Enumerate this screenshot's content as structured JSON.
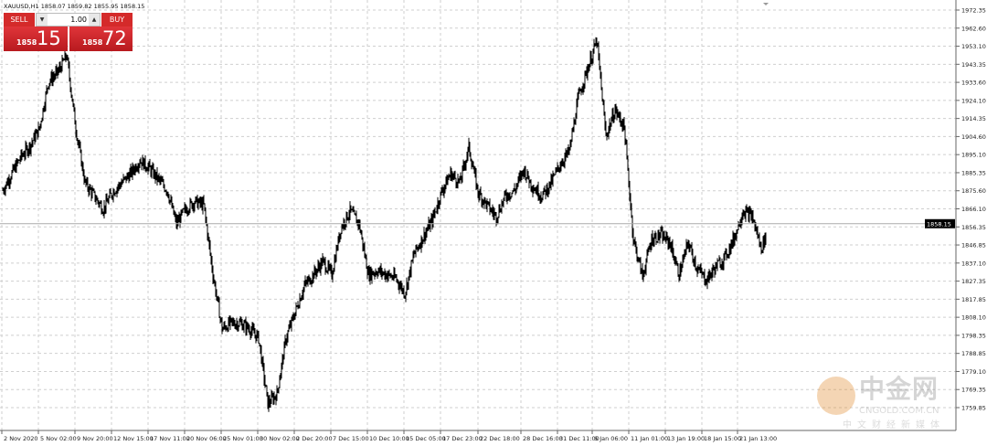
{
  "symbol_line": "XAUUSD,H1  1858.07 1859.82 1855.95 1858.15",
  "ticket": {
    "sell_label": "SELL",
    "buy_label": "BUY",
    "lots": "1.00",
    "sell_price_prefix": "1858",
    "sell_price_big": "15",
    "buy_price_prefix": "1858",
    "buy_price_big": "72"
  },
  "watermark": {
    "cn": "中金网",
    "en": "CNGOLD.COM.CN",
    "sub": "中文财经新媒体"
  },
  "colors": {
    "ticket": "#d42a2a",
    "price_line": "#000000",
    "grid": "#c8c8c8",
    "current_price_bg": "#000000"
  },
  "chart_data": {
    "type": "line",
    "style": "bars",
    "grid": true,
    "current_price": "1858.15",
    "ylim": [
      1759.85,
      1972.35
    ],
    "y_ticks": [
      "1972.35",
      "1962.60",
      "1953.10",
      "1943.35",
      "1933.60",
      "1924.10",
      "1914.35",
      "1904.60",
      "1895.10",
      "1885.35",
      "1875.60",
      "1866.10",
      "1856.35",
      "1846.85",
      "1837.10",
      "1827.35",
      "1817.85",
      "1808.10",
      "1798.35",
      "1788.85",
      "1779.10",
      "1769.35",
      "1759.85"
    ],
    "x_ticks": [
      "2 Nov 2020",
      "5 Nov 02:00",
      "9 Nov 20:00",
      "12 Nov 15:00",
      "17 Nov 11:00",
      "20 Nov 06:00",
      "25 Nov 01:00",
      "30 Nov 02:00",
      "2 Dec 20:00",
      "7 Dec 15:00",
      "10 Dec 10:00",
      "15 Dec 05:00",
      "17 Dec 23:00",
      "22 Dec 18:00",
      "28 Dec 16:00",
      "31 Dec 11:00",
      "6 Jan 06:00",
      "11 Jan 01:00",
      "13 Jan 19:00",
      "18 Jan 15:00",
      "21 Jan 13:00"
    ],
    "closes": [
      1876,
      1885,
      1894,
      1900,
      1909,
      1934,
      1939,
      1948,
      1909,
      1880,
      1873,
      1866,
      1875,
      1880,
      1885,
      1892,
      1888,
      1882,
      1876,
      1858,
      1866,
      1870,
      1868,
      1831,
      1802,
      1805,
      1805,
      1802,
      1797,
      1762,
      1767,
      1797,
      1811,
      1825,
      1831,
      1838,
      1831,
      1856,
      1865,
      1858,
      1831,
      1833,
      1831,
      1829,
      1821,
      1842,
      1851,
      1860,
      1875,
      1885,
      1880,
      1899,
      1875,
      1868,
      1862,
      1873,
      1876,
      1887,
      1878,
      1873,
      1880,
      1890,
      1897,
      1926,
      1941,
      1956,
      1905,
      1919,
      1910,
      1850,
      1830,
      1850,
      1852,
      1848,
      1831,
      1848,
      1834,
      1828,
      1835,
      1840,
      1850,
      1865,
      1862,
      1845,
      1858.15
    ]
  }
}
